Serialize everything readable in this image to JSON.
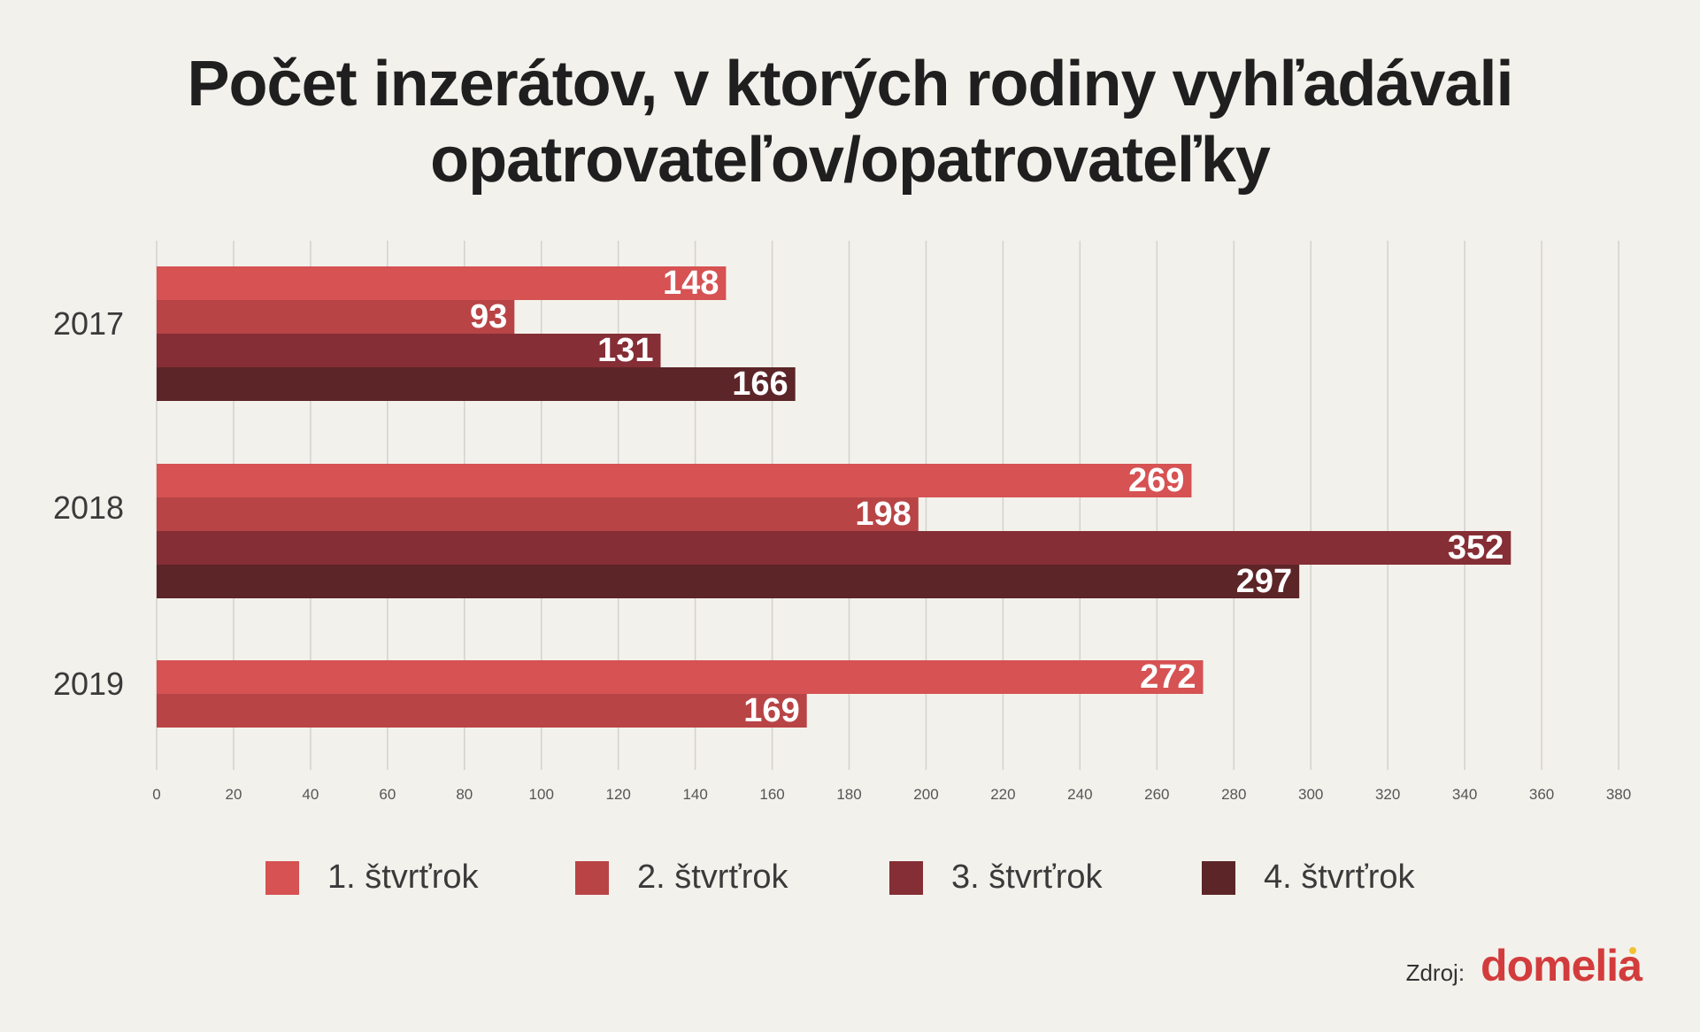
{
  "title_lines": [
    "Počet inzerátov, v ktorých rodiny vyhľadávali",
    "opatrovateľov/opatrovateľky"
  ],
  "chart_data": {
    "type": "bar",
    "orientation": "horizontal",
    "categories": [
      "2017",
      "2018",
      "2019"
    ],
    "series": [
      {
        "name": "1. štvrťrok",
        "color": "#d65253",
        "values": [
          148,
          269,
          272
        ]
      },
      {
        "name": "2. štvrťrok",
        "color": "#b84446",
        "values": [
          93,
          198,
          169
        ]
      },
      {
        "name": "3. štvrťrok",
        "color": "#852e35",
        "values": [
          131,
          352,
          null
        ]
      },
      {
        "name": "4. štvrťrok",
        "color": "#5c2527",
        "values": [
          166,
          297,
          null
        ]
      }
    ],
    "xlim": [
      0,
      380
    ],
    "xticks": [
      0,
      20,
      40,
      60,
      80,
      100,
      120,
      140,
      160,
      180,
      200,
      220,
      240,
      260,
      280,
      300,
      320,
      340,
      360,
      380
    ],
    "grid": true,
    "data_labels": true,
    "legend_position": "bottom"
  },
  "source": {
    "label": "Zdroj:",
    "brand": "domelia",
    "brand_color": "#d33c3c"
  }
}
